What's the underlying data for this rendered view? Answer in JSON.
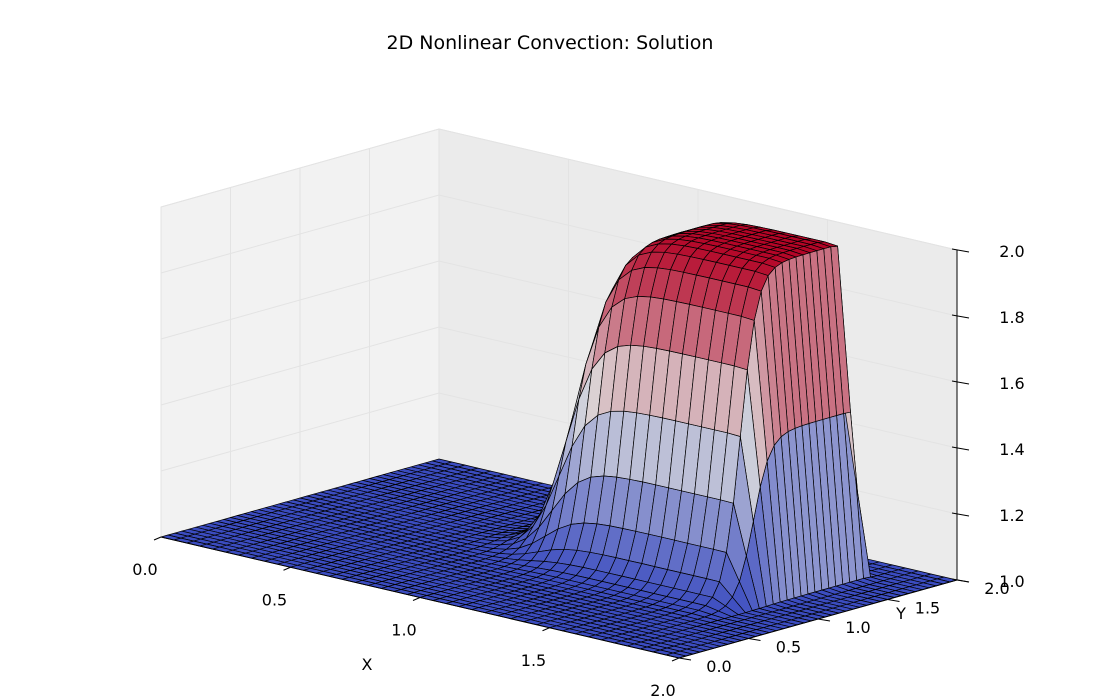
{
  "chart_data": {
    "type": "surface",
    "title": "2D Nonlinear Convection: Solution",
    "xlabel": "X",
    "ylabel": "Y",
    "zlabel": "",
    "xlim": [
      0,
      2
    ],
    "ylim": [
      0,
      2
    ],
    "zlim": [
      1,
      2
    ],
    "x_ticks": [
      "0.0",
      "0.5",
      "1.0",
      "1.5",
      "2.0"
    ],
    "y_ticks": [
      "0.0",
      "0.5",
      "1.0",
      "1.5",
      "2.0"
    ],
    "z_ticks": [
      "1.0",
      "1.2",
      "1.4",
      "1.6",
      "1.8",
      "2.0"
    ],
    "colormap": "coolwarm",
    "colormap_low": "#3b4cc0",
    "colormap_mid": "#dddddd",
    "colormap_high": "#b40426",
    "grid": true,
    "wireframe_color": "#000000",
    "surface": {
      "baseline_u": 1.0,
      "peak_u": 2.0,
      "plateau_x_range": [
        1.05,
        1.75
      ],
      "plateau_y_range": [
        1.05,
        1.75
      ],
      "leading_edge": "steep (shock) near x = 1.75, y = 1.75",
      "trailing_edge": "gradual (expansion) from x = 0.55, y = 0.55",
      "grid_points": [
        41,
        41
      ]
    }
  }
}
